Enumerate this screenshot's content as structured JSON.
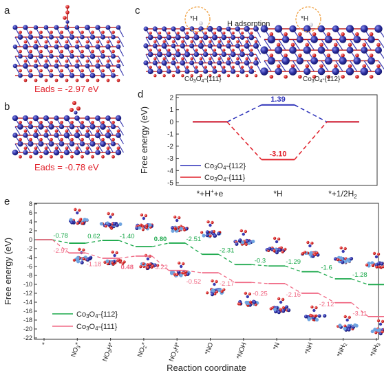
{
  "panels": {
    "a": {
      "letter": "a",
      "energy": "Eₐₙₛ = -2.97 eV",
      "energy_label": "Eads = -2.97 eV"
    },
    "b": {
      "letter": "b",
      "energy_label": "Eads = -0.78 eV"
    },
    "c": {
      "letter": "c",
      "title": "H adsorption",
      "h_label_left": "*H",
      "h_label_right": "*H",
      "left_caption": "Co3O4-{111}",
      "right_caption": "Co3O4-{112}"
    },
    "d": {
      "letter": "d"
    },
    "e": {
      "letter": "e"
    }
  },
  "colors": {
    "co": "#2b2fa0",
    "o": "#d62020",
    "red_series": "#e0202a",
    "blue_series": "#2a2fb8",
    "green_series": "#1aa84a",
    "pink_series": "#f06a85",
    "halo": "#f0a040"
  },
  "chart_data": [
    {
      "panel": "d",
      "type": "line",
      "ylabel": "Free energy (eV)",
      "ylim": [
        -5,
        2
      ],
      "yticks": [
        2,
        1,
        0,
        -1,
        -2,
        -3,
        -4,
        -5
      ],
      "categories": [
        "*+H⁺+e",
        "*H",
        "*+1/2H₂"
      ],
      "category_labels": [
        "*+H+e",
        "*H",
        "*+1/2H2"
      ],
      "series": [
        {
          "name": "Co3O4-{112}",
          "values": [
            0,
            1.39,
            0
          ],
          "label": "1.39"
        },
        {
          "name": "Co3O4-{111}",
          "values": [
            0,
            -3.1,
            0
          ],
          "label": "-3.10"
        }
      ],
      "legend": "bottom-left"
    },
    {
      "panel": "e",
      "type": "line",
      "ylabel": "Free energy (eV)",
      "xlabel": "Reaction coordinate",
      "ylim": [
        -22,
        8
      ],
      "yticks": [
        8,
        6,
        4,
        2,
        0,
        -2,
        -4,
        -6,
        -8,
        -10,
        -12,
        -14,
        -16,
        -18,
        -20,
        -22
      ],
      "categories": [
        "*",
        "NO3*",
        "NO3H*",
        "NO2*",
        "NO2H*",
        "*NO",
        "*NOH",
        "*N",
        "*NH",
        "*NH2",
        "*NH3"
      ],
      "series": [
        {
          "name": "Co3O4-{112}",
          "values": [
            0,
            -0.78,
            -0.16,
            -1.56,
            -0.76,
            -3.27,
            -5.58,
            -5.88,
            -7.17,
            -8.77,
            -10.05
          ],
          "step_labels": [
            "-0.78",
            "0.62",
            "-1.40",
            "0.80",
            "-2.51",
            "-2.31",
            "-0.3",
            "-1.29",
            "-1.6",
            "-1.28"
          ]
        },
        {
          "name": "Co3O4-{111}",
          "values": [
            0,
            -2.97,
            -4.15,
            -3.67,
            -6.89,
            -7.41,
            -9.58,
            -9.83,
            -11.99,
            -14.11,
            -17.22
          ],
          "step_labels": [
            "-2.97",
            "-1.18",
            "0.48",
            "-3.22",
            "-0.52",
            "-2.17",
            "-0.25",
            "-2.16",
            "-2.12",
            "-3.11"
          ]
        }
      ],
      "legend": "bottom-left"
    }
  ]
}
